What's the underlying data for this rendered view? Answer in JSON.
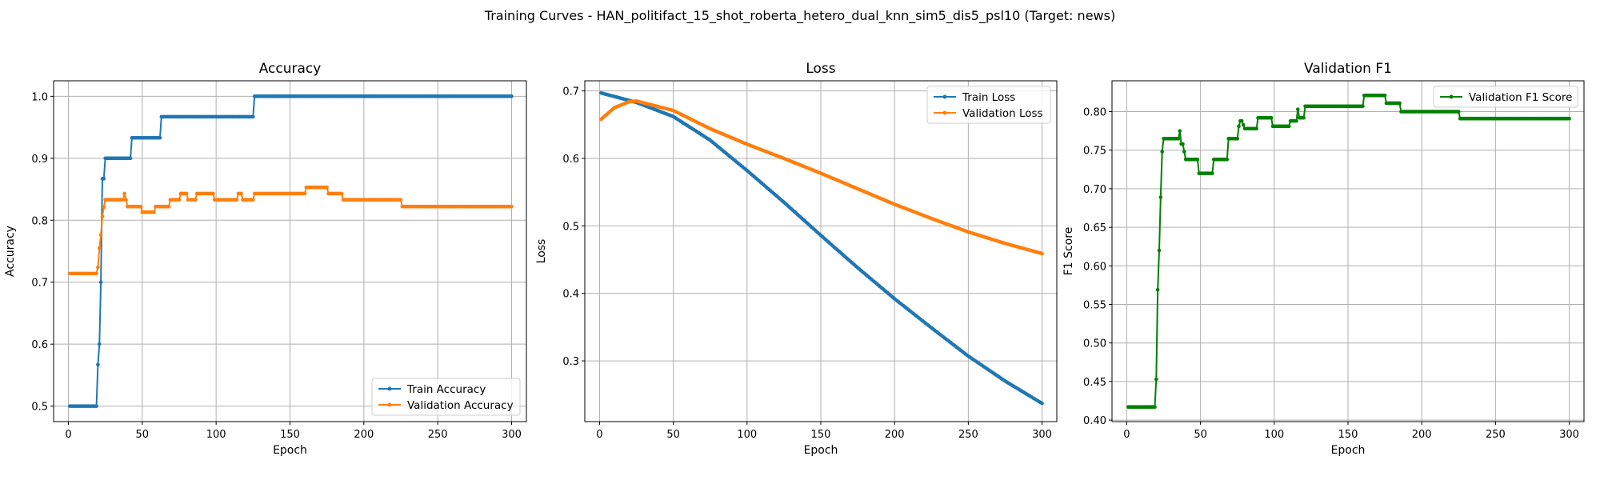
{
  "colors": {
    "blue": "#1f77b4",
    "orange": "#ff7f0e",
    "green": "#008000"
  },
  "chart_data": {
    "suptitle": "Training Curves - HAN_politifact_15_shot_roberta_hetero_dual_knn_sim5_dis5_psl10 (Target: news)",
    "panels": [
      {
        "type": "line",
        "title": "Accuracy",
        "xlabel": "Epoch",
        "ylabel": "Accuracy",
        "xlim": [
          -10,
          310
        ],
        "ylim": [
          0.475,
          1.025
        ],
        "xticks": [
          0,
          50,
          100,
          150,
          200,
          250,
          300
        ],
        "yticks": [
          0.5,
          0.6,
          0.7,
          0.8,
          0.9,
          1.0
        ],
        "ytick_labels": [
          "0.5",
          "0.6",
          "0.7",
          "0.8",
          "0.9",
          "1.0"
        ],
        "grid": true,
        "legend_position": "lower-right",
        "series": [
          {
            "name": "Train Accuracy",
            "color": "blue",
            "x": [
              1,
              19,
              20,
              21,
              22,
              23,
              24,
              25,
              42,
              43,
              62,
              63,
              125,
              126,
              300
            ],
            "y": [
              0.5,
              0.5,
              0.567,
              0.6,
              0.7,
              0.867,
              0.867,
              0.9,
              0.9,
              0.933,
              0.933,
              0.967,
              0.967,
              1.0,
              1.0
            ]
          },
          {
            "name": "Validation Accuracy",
            "color": "orange",
            "x": [
              1,
              19,
              20,
              21,
              22,
              23,
              24,
              25,
              26,
              37,
              38,
              39,
              40,
              49,
              50,
              58,
              59,
              68,
              69,
              75,
              76,
              80,
              81,
              86,
              87,
              98,
              99,
              114,
              115,
              117,
              118,
              125,
              126,
              160,
              161,
              175,
              176,
              185,
              186,
              225,
              226,
              300
            ],
            "y": [
              0.714,
              0.714,
              0.724,
              0.755,
              0.776,
              0.806,
              0.821,
              0.833,
              0.833,
              0.833,
              0.843,
              0.833,
              0.822,
              0.822,
              0.813,
              0.813,
              0.822,
              0.822,
              0.833,
              0.833,
              0.843,
              0.843,
              0.833,
              0.833,
              0.843,
              0.843,
              0.833,
              0.833,
              0.843,
              0.843,
              0.833,
              0.833,
              0.843,
              0.843,
              0.853,
              0.853,
              0.843,
              0.843,
              0.833,
              0.833,
              0.822,
              0.822
            ]
          }
        ]
      },
      {
        "type": "line",
        "title": "Loss",
        "xlabel": "Epoch",
        "ylabel": "Loss",
        "xlim": [
          -10,
          310
        ],
        "ylim": [
          0.21,
          0.715
        ],
        "xticks": [
          0,
          50,
          100,
          150,
          200,
          250,
          300
        ],
        "yticks": [
          0.3,
          0.4,
          0.5,
          0.6,
          0.7
        ],
        "ytick_labels": [
          "0.3",
          "0.4",
          "0.5",
          "0.6",
          "0.7"
        ],
        "grid": true,
        "legend_position": "top-right",
        "series": [
          {
            "name": "Train Loss",
            "color": "blue",
            "x": [
              1,
              25,
              50,
              75,
              100,
              125,
              150,
              175,
              200,
              225,
              250,
              275,
              300
            ],
            "y": [
              0.697,
              0.683,
              0.662,
              0.627,
              0.582,
              0.535,
              0.486,
              0.438,
              0.392,
              0.349,
              0.307,
              0.27,
              0.237
            ]
          },
          {
            "name": "Validation Loss",
            "color": "orange",
            "x": [
              1,
              10,
              20,
              25,
              50,
              75,
              100,
              125,
              150,
              175,
              200,
              225,
              250,
              275,
              300
            ],
            "y": [
              0.658,
              0.675,
              0.684,
              0.685,
              0.671,
              0.644,
              0.621,
              0.6,
              0.578,
              0.555,
              0.532,
              0.511,
              0.491,
              0.474,
              0.459
            ]
          }
        ]
      },
      {
        "type": "line",
        "title": "Validation F1",
        "xlabel": "Epoch",
        "ylabel": "F1 Score",
        "xlim": [
          -10,
          310
        ],
        "ylim": [
          0.398,
          0.84
        ],
        "xticks": [
          0,
          50,
          100,
          150,
          200,
          250,
          300
        ],
        "yticks": [
          0.4,
          0.45,
          0.5,
          0.55,
          0.6,
          0.65,
          0.7,
          0.75,
          0.8
        ],
        "ytick_labels": [
          "0.40",
          "0.45",
          "0.50",
          "0.55",
          "0.60",
          "0.65",
          "0.70",
          "0.75",
          "0.80"
        ],
        "grid": true,
        "legend_position": "top-right",
        "series": [
          {
            "name": "Validation F1 Score",
            "color": "green",
            "x": [
              1,
              19,
              20,
              21,
              22,
              23,
              24,
              25,
              26,
              35,
              36,
              37,
              38,
              40,
              41,
              48,
              49,
              58,
              59,
              68,
              69,
              75,
              76,
              77,
              78,
              80,
              81,
              88,
              89,
              98,
              99,
              110,
              111,
              115,
              116,
              117,
              118,
              120,
              121,
              160,
              161,
              175,
              176,
              185,
              186,
              225,
              226,
              300
            ],
            "y": [
              0.417,
              0.417,
              0.453,
              0.569,
              0.62,
              0.689,
              0.748,
              0.765,
              0.765,
              0.765,
              0.775,
              0.758,
              0.758,
              0.738,
              0.738,
              0.738,
              0.72,
              0.72,
              0.738,
              0.738,
              0.765,
              0.765,
              0.781,
              0.788,
              0.788,
              0.778,
              0.778,
              0.778,
              0.792,
              0.792,
              0.781,
              0.781,
              0.788,
              0.788,
              0.803,
              0.792,
              0.792,
              0.792,
              0.807,
              0.807,
              0.821,
              0.821,
              0.811,
              0.811,
              0.8,
              0.8,
              0.791,
              0.791
            ]
          }
        ]
      }
    ]
  }
}
